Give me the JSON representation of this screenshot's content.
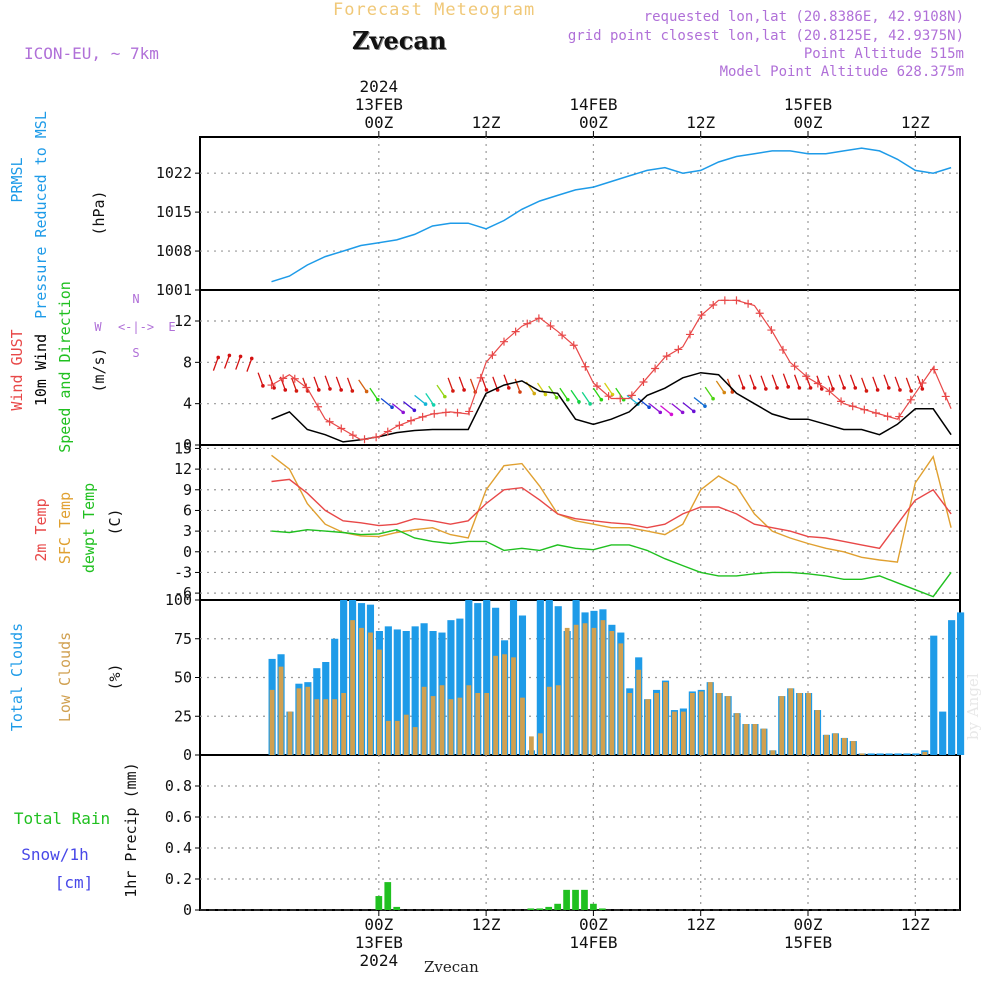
{
  "header": {
    "title": "Forecast Meteogram",
    "station": "Zvecan",
    "model": "ICON-EU, ~ 7km",
    "requested": "requested lon,lat (20.8386E, 42.9108N)",
    "gridpoint": "grid point closest lon,lat (20.8125E, 42.9375N)",
    "point_altitude": "Point Altitude 515m",
    "model_altitude": "Model Point Altitude 628.375m",
    "footer": "Zvecan",
    "watermark": "by Angel"
  },
  "time_axis": {
    "top_year": "2024",
    "ticks": [
      {
        "t": 24,
        "upper": "13FEB",
        "lower": "00Z"
      },
      {
        "t": 36,
        "upper": "",
        "lower": "12Z"
      },
      {
        "t": 48,
        "upper": "14FEB",
        "lower": "00Z"
      },
      {
        "t": 60,
        "upper": "",
        "lower": "12Z"
      },
      {
        "t": 72,
        "upper": "15FEB",
        "lower": "00Z"
      },
      {
        "t": 84,
        "upper": "",
        "lower": "12Z"
      }
    ],
    "bottom_ticks": [
      {
        "t": 24,
        "l1": "00Z",
        "l2": "13FEB",
        "l3": "2024"
      },
      {
        "t": 36,
        "l1": "12Z",
        "l2": "",
        "l3": ""
      },
      {
        "t": 48,
        "l1": "00Z",
        "l2": "14FEB",
        "l3": ""
      },
      {
        "t": 60,
        "l1": "12Z",
        "l2": "",
        "l3": ""
      },
      {
        "t": 72,
        "l1": "00Z",
        "l2": "15FEB",
        "l3": ""
      },
      {
        "t": 84,
        "l1": "12Z",
        "l2": "",
        "l3": ""
      }
    ]
  },
  "colors": {
    "pressure": "#1e9be8",
    "gust": "#e84848",
    "wind10m": "#000000",
    "wind_label": "#20c020",
    "temp2m": "#e84848",
    "sfc": "#e0a030",
    "dewpt": "#20c020",
    "total_cloud": "#1e9be8",
    "low_cloud": "#d0a050",
    "rain": "#20c020",
    "snow": "#4848e8",
    "compass": "#b070d8"
  },
  "chart_data": [
    {
      "type": "line",
      "panel": "pressure",
      "ylabels": [
        "PRMSL",
        "Pressure Reduced to MSL",
        "(hPa)"
      ],
      "yticks": [
        1001,
        1008,
        1015,
        1022
      ],
      "ylim": [
        1001,
        1028.5
      ],
      "series": [
        {
          "name": "PRMSL",
          "x": [
            12,
            14,
            16,
            18,
            20,
            22,
            24,
            26,
            28,
            30,
            32,
            34,
            36,
            38,
            40,
            42,
            44,
            46,
            48,
            50,
            52,
            54,
            56,
            58,
            60,
            62,
            64,
            66,
            68,
            70,
            72,
            74,
            76,
            78,
            80,
            82,
            84,
            86,
            88
          ],
          "values": [
            1002.5,
            1003.5,
            1005.5,
            1007,
            1008,
            1009,
            1009.5,
            1010,
            1011,
            1012.5,
            1013,
            1013,
            1012,
            1013.5,
            1015.5,
            1017,
            1018,
            1019,
            1019.5,
            1020.5,
            1021.5,
            1022.5,
            1023,
            1022,
            1022.5,
            1024,
            1025,
            1025.5,
            1026,
            1026,
            1025.5,
            1025.5,
            1026,
            1026.5,
            1026,
            1024.5,
            1022.5,
            1022,
            1023
          ]
        }
      ]
    },
    {
      "type": "line",
      "panel": "wind",
      "ylabels": [
        "Wind GUST",
        "10m Wind",
        "Speed and Direction",
        "(m/s)"
      ],
      "compass": {
        "n": "N",
        "s": "S",
        "w": "W",
        "e": "E",
        "arrows": "<-|->"
      },
      "yticks": [
        0,
        4,
        8,
        12
      ],
      "ylim": [
        0,
        15
      ],
      "series": [
        {
          "name": "Wind GUST",
          "x": [
            12,
            14,
            16,
            18,
            20,
            22,
            24,
            26,
            28,
            30,
            32,
            34,
            36,
            38,
            40,
            42,
            44,
            46,
            48,
            50,
            52,
            54,
            56,
            58,
            60,
            62,
            64,
            66,
            68,
            70,
            72,
            74,
            76,
            78,
            80,
            82,
            84,
            86,
            88
          ],
          "values": [
            5.8,
            6.8,
            5.5,
            2.5,
            1.5,
            0.5,
            0.8,
            1.8,
            2.5,
            3,
            3.2,
            3,
            8,
            10,
            11.5,
            12.3,
            11,
            9.5,
            6,
            4.5,
            4.5,
            6.5,
            8.5,
            9.5,
            12.5,
            14,
            14,
            13.5,
            11,
            8,
            6.5,
            5.5,
            4,
            3.5,
            3,
            2.5,
            5,
            7.5,
            3.5
          ]
        },
        {
          "name": "10m Wind",
          "x": [
            12,
            14,
            16,
            18,
            20,
            22,
            24,
            26,
            28,
            30,
            32,
            34,
            36,
            38,
            40,
            42,
            44,
            46,
            48,
            50,
            52,
            54,
            56,
            58,
            60,
            62,
            64,
            66,
            68,
            70,
            72,
            74,
            76,
            78,
            80,
            82,
            84,
            86,
            88
          ],
          "values": [
            2.5,
            3.2,
            1.5,
            1,
            0.3,
            0.5,
            0.8,
            1.2,
            1.4,
            1.5,
            1.5,
            1.5,
            5,
            5.8,
            6.2,
            5.2,
            5,
            2.5,
            2,
            2.5,
            3.2,
            4.8,
            5.5,
            6.5,
            7,
            6.8,
            5,
            4,
            3,
            2.5,
            2.5,
            2,
            1.5,
            1.5,
            1,
            2,
            3.5,
            3.5,
            1
          ]
        }
      ],
      "arrow_speeds": [
        7.2,
        7.4,
        7.3,
        7.1,
        7,
        6.8,
        6.6,
        6.5,
        6.5,
        6.6,
        6.7,
        6.6,
        6.5,
        6.3,
        5.5,
        4.5,
        4,
        4.2,
        4.8,
        5,
        5.8,
        6.5,
        6.6,
        6.4,
        6.6,
        6.6,
        6.8,
        6.4,
        6.1,
        6,
        5.7,
        5.5,
        5.3,
        5.1,
        5.5,
        6,
        5.5,
        4.8,
        4.5,
        4,
        3.8,
        4,
        4.1,
        4.6,
        5.6,
        6.2,
        6.4,
        6.8,
        6.8,
        6.7,
        6.8,
        6.9,
        6.8,
        6.8,
        6.7,
        6.7,
        6.8,
        6.8,
        6.5,
        6.6,
        6.8,
        6.6,
        6.5,
        6.7
      ]
    },
    {
      "type": "line",
      "panel": "temperature",
      "ylabels": [
        "2m Temp",
        "SFC Temp",
        "dewpt Temp",
        "(C)"
      ],
      "yticks": [
        -6,
        -3,
        0,
        3,
        6,
        9,
        12,
        15
      ],
      "ylim": [
        -7,
        15.5
      ],
      "series": [
        {
          "name": "2m Temp",
          "x": [
            12,
            14,
            16,
            18,
            20,
            22,
            24,
            26,
            28,
            30,
            32,
            34,
            36,
            38,
            40,
            42,
            44,
            46,
            48,
            50,
            52,
            54,
            56,
            58,
            60,
            62,
            64,
            66,
            68,
            70,
            72,
            74,
            76,
            78,
            80,
            82,
            84,
            86,
            88
          ],
          "values": [
            10.2,
            10.5,
            8.5,
            6,
            4.5,
            4.2,
            3.8,
            4,
            4.8,
            4.5,
            4,
            4.5,
            7,
            9,
            9.3,
            7.5,
            5.5,
            4.8,
            4.5,
            4.2,
            4,
            3.5,
            4,
            5.5,
            6.5,
            6.5,
            5.5,
            4,
            3.5,
            3,
            2.2,
            2,
            1.5,
            1,
            0.5,
            4,
            7.5,
            9,
            5.5
          ]
        },
        {
          "name": "SFC Temp",
          "x": [
            12,
            14,
            16,
            18,
            20,
            22,
            24,
            26,
            28,
            30,
            32,
            34,
            36,
            38,
            40,
            42,
            44,
            46,
            48,
            50,
            52,
            54,
            56,
            58,
            60,
            62,
            64,
            66,
            68,
            70,
            72,
            74,
            76,
            78,
            80,
            82,
            84,
            86,
            88
          ],
          "values": [
            14,
            12,
            7,
            4,
            2.8,
            2.3,
            2.2,
            2.8,
            3.2,
            3.5,
            2.5,
            2,
            9,
            12.5,
            12.8,
            9.5,
            5.5,
            4.5,
            4,
            3.5,
            3.5,
            3,
            2.5,
            4,
            9,
            11,
            9.5,
            5.5,
            3,
            2,
            1.2,
            0.5,
            0,
            -0.8,
            -1.2,
            -1.5,
            10,
            13.8,
            3.5
          ]
        },
        {
          "name": "dewpt Temp",
          "x": [
            12,
            14,
            16,
            18,
            20,
            22,
            24,
            26,
            28,
            30,
            32,
            34,
            36,
            38,
            40,
            42,
            44,
            46,
            48,
            50,
            52,
            54,
            56,
            58,
            60,
            62,
            64,
            66,
            68,
            70,
            72,
            74,
            76,
            78,
            80,
            82,
            84,
            86,
            88
          ],
          "values": [
            3,
            2.8,
            3.2,
            3,
            2.8,
            2.5,
            2.6,
            3.2,
            2,
            1.5,
            1.2,
            1.5,
            1.5,
            0.2,
            0.5,
            0.2,
            1,
            0.5,
            0.3,
            1,
            1,
            0.2,
            -1,
            -2,
            -3,
            -3.5,
            -3.5,
            -3.2,
            -3,
            -3,
            -3.2,
            -3.5,
            -4,
            -4,
            -3.5,
            -4.5,
            -5.5,
            -6.5,
            -3
          ]
        }
      ]
    },
    {
      "type": "bar",
      "panel": "clouds",
      "ylabels": [
        "Total Clouds",
        "Low Clouds",
        "(%)"
      ],
      "yticks": [
        0,
        25,
        50,
        75,
        100
      ],
      "ylim": [
        0,
        100
      ],
      "x_start": 12,
      "series": [
        {
          "name": "Total Clouds",
          "values": [
            62,
            65,
            28,
            46,
            47,
            56,
            60,
            75,
            100,
            100,
            98,
            97,
            80,
            83,
            81,
            80,
            83,
            85,
            80,
            79,
            87,
            88,
            100,
            98,
            100,
            95,
            74,
            100,
            90,
            3,
            100,
            100,
            96,
            80,
            100,
            92,
            93,
            94,
            84,
            79,
            43,
            63,
            36,
            42,
            48,
            29,
            30,
            41,
            42,
            47,
            40,
            38,
            27,
            20,
            20,
            17,
            3,
            38,
            43,
            40,
            40,
            29,
            13,
            14,
            11,
            9,
            1,
            1,
            1,
            1,
            1,
            1,
            1,
            3,
            77,
            28,
            87,
            92
          ]
        },
        {
          "name": "Low Clouds",
          "values": [
            42,
            57,
            28,
            43,
            44,
            36,
            36,
            36,
            40,
            87,
            82,
            79,
            68,
            22,
            22,
            26,
            18,
            44,
            38,
            45,
            36,
            37,
            45,
            40,
            40,
            64,
            65,
            63,
            37,
            12,
            14,
            44,
            45,
            82,
            84,
            85,
            82,
            87,
            80,
            72,
            40,
            55,
            36,
            40,
            47,
            28,
            28,
            40,
            41,
            47,
            40,
            38,
            27,
            20,
            20,
            17,
            3,
            38,
            43,
            40,
            40,
            29,
            13,
            14,
            11,
            9,
            1,
            0,
            0,
            0,
            0,
            0,
            0,
            2,
            0,
            0,
            0,
            0
          ]
        }
      ]
    },
    {
      "type": "bar",
      "panel": "precip",
      "labels": {
        "total_rain": "Total  Rain",
        "snow": "Snow/1h",
        "unit": "[cm]",
        "yaxis": "1hr Precip (mm)"
      },
      "yticks": [
        0,
        0.2,
        0.4,
        0.6,
        0.8
      ],
      "ylim": [
        0,
        1.0
      ],
      "series": [
        {
          "name": "Total Rain",
          "x": [
            24,
            25,
            26,
            41,
            42,
            43,
            44,
            45,
            46,
            47,
            48,
            49
          ],
          "values": [
            0.09,
            0.18,
            0.02,
            0.01,
            0.01,
            0.02,
            0.04,
            0.13,
            0.13,
            0.13,
            0.04,
            0.01
          ]
        }
      ]
    }
  ]
}
